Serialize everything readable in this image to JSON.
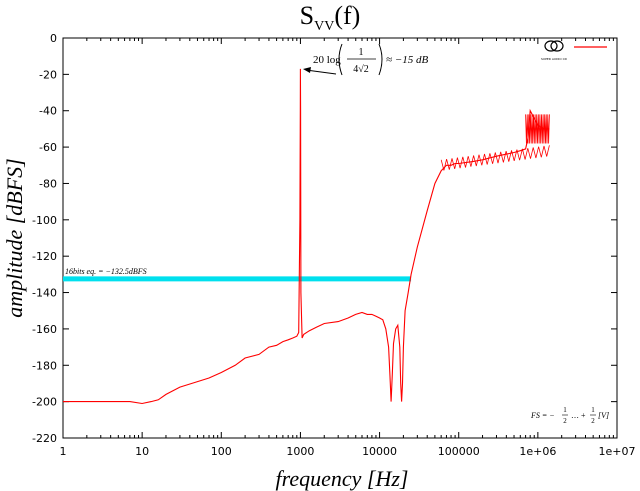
{
  "chart_data": {
    "type": "line",
    "title": "Svv(f)",
    "title_main": "S",
    "title_sub": "VV",
    "title_tail": "(f)",
    "xlabel": "frequency [Hz]",
    "ylabel": "amplitude [dBFS]",
    "xscale": "log",
    "xlim": [
      1,
      10000000
    ],
    "ylim": [
      -220,
      0
    ],
    "grid": false,
    "x_ticks": [
      {
        "value": 1,
        "label": "1"
      },
      {
        "value": 10,
        "label": "10"
      },
      {
        "value": 100,
        "label": "100"
      },
      {
        "value": 1000,
        "label": "1000"
      },
      {
        "value": 10000,
        "label": "10000"
      },
      {
        "value": 100000,
        "label": "100000"
      },
      {
        "value": 1000000,
        "label": "1e+06"
      },
      {
        "value": 10000000,
        "label": "1e+07"
      }
    ],
    "y_ticks": [
      {
        "value": 0,
        "label": "0"
      },
      {
        "value": -20,
        "label": "-20"
      },
      {
        "value": -40,
        "label": "-40"
      },
      {
        "value": -60,
        "label": "-60"
      },
      {
        "value": -80,
        "label": "-80"
      },
      {
        "value": -100,
        "label": "-100"
      },
      {
        "value": -120,
        "label": "-120"
      },
      {
        "value": -140,
        "label": "-140"
      },
      {
        "value": -160,
        "label": "-160"
      },
      {
        "value": -180,
        "label": "-180"
      },
      {
        "value": -200,
        "label": "-200"
      },
      {
        "value": -220,
        "label": "-220"
      }
    ],
    "series": [
      {
        "color": "#ff0000",
        "x": [
          1,
          2,
          5,
          7,
          10,
          13,
          16,
          20,
          30,
          50,
          70,
          100,
          150,
          200,
          300,
          400,
          500,
          600,
          700,
          800,
          900,
          950,
          985,
          995,
          1000,
          1005,
          1015,
          1050,
          1100,
          1300,
          1600,
          2000,
          3000,
          4000,
          5000,
          6000,
          7000,
          8000,
          9000,
          10000,
          11000,
          12000,
          13000,
          13500,
          14000,
          14500,
          15000,
          16000,
          17000,
          18000,
          18500,
          19000,
          19500,
          20000,
          21000,
          23000,
          25000,
          30000,
          40000,
          50000,
          60000,
          70000,
          80000,
          90000,
          100000,
          150000,
          200000,
          300000,
          500000,
          600000,
          700000,
          750000,
          800000,
          1000000,
          1200000,
          1400000
        ],
        "y": [
          -200,
          -200,
          -200,
          -200,
          -201,
          -200,
          -199,
          -196,
          -192,
          -189,
          -187,
          -184,
          -180,
          -176,
          -174,
          -170,
          -169,
          -167,
          -166,
          -165,
          -164,
          -162,
          -100,
          -40,
          -17,
          -40,
          -140,
          -165,
          -163,
          -161,
          -159,
          -157,
          -156,
          -154,
          -152,
          -151,
          -152,
          -152,
          -153,
          -154,
          -155,
          -160,
          -170,
          -185,
          -200,
          -185,
          -168,
          -160,
          -158,
          -170,
          -190,
          -200,
          -190,
          -170,
          -150,
          -140,
          -130,
          -115,
          -95,
          -80,
          -73,
          -70,
          -70,
          -69,
          -69,
          -68,
          -67,
          -65,
          -63,
          -62,
          -61,
          -55,
          -40,
          -48,
          -50,
          -50
        ]
      }
    ],
    "reference_line": {
      "label": "16 bits eq. = −132.5 dBFS",
      "label_text": "16bits eq. = −132.5dBFS",
      "y": -132.5,
      "x_start": 1,
      "x_end": 25000,
      "color": "#00e0ee"
    },
    "annotations": [
      {
        "text": "20 log(1/(4√2)) ≈ −15 dB",
        "prefix": "20 log",
        "numerator": "1",
        "denominator": "4√2",
        "suffix": "≈ −15 dB",
        "x": 1000,
        "y": -17
      },
      {
        "text": "FS = −1/2 … +1/2 [V]",
        "prefix": "FS = −",
        "frac_num": "1",
        "frac_den": "2",
        "mid": "… +",
        "tail": "[V]"
      }
    ],
    "legend": {
      "placement": "top-right",
      "color": "#ff0000",
      "logo_text": "SUPER AUDIO CD"
    }
  }
}
